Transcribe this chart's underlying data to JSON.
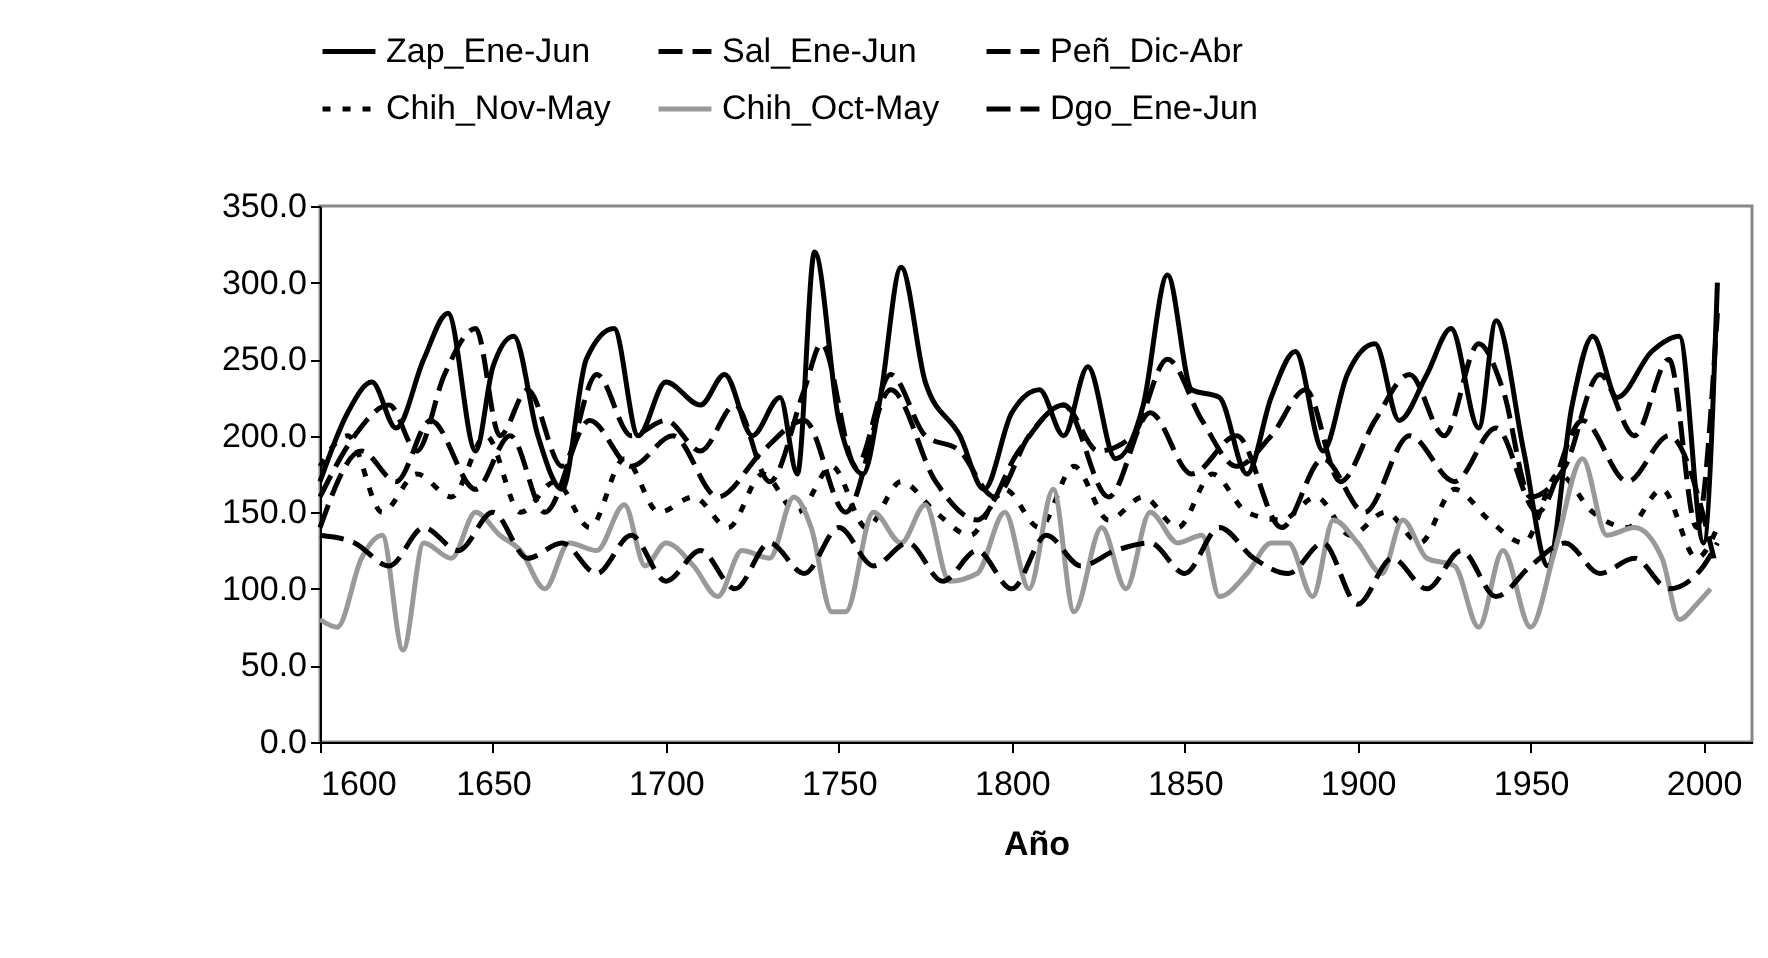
{
  "chart_data": {
    "type": "line",
    "xlabel": "Año",
    "legend": "top",
    "grid": false,
    "xlim": [
      1600,
      2014
    ],
    "xticks": [
      1600,
      1650,
      1700,
      1750,
      1800,
      1850,
      1900,
      1950,
      2000
    ],
    "ylim": [
      0,
      350
    ],
    "yticks": [
      {
        "value": 0,
        "label": "0.0"
      },
      {
        "value": 50,
        "label": "50.0"
      },
      {
        "value": 100,
        "label": "100.0"
      },
      {
        "value": 150,
        "label": "150.0"
      },
      {
        "value": 200,
        "label": "200.0"
      },
      {
        "value": 250,
        "label": "250.0"
      },
      {
        "value": 300,
        "label": "300.0"
      },
      {
        "value": 350,
        "label": "350.0"
      }
    ],
    "series": [
      {
        "name": "Zap_Ene-Jun",
        "color": "#000000",
        "line_style": "solid",
        "x": [
          1600,
          1608,
          1615,
          1622,
          1630,
          1637,
          1645,
          1650,
          1656,
          1663,
          1670,
          1677,
          1685,
          1692,
          1700,
          1710,
          1717,
          1725,
          1733,
          1738,
          1743,
          1750,
          1757,
          1762,
          1768,
          1775,
          1785,
          1792,
          1800,
          1808,
          1815,
          1822,
          1830,
          1838,
          1845,
          1852,
          1860,
          1868,
          1875,
          1882,
          1890,
          1897,
          1905,
          1912,
          1920,
          1927,
          1935,
          1940,
          1948,
          1955,
          1962,
          1968,
          1975,
          1985,
          1993,
          2000,
          2004
        ],
        "values": [
          170,
          215,
          235,
          205,
          250,
          280,
          190,
          245,
          265,
          200,
          165,
          250,
          270,
          200,
          235,
          220,
          240,
          200,
          225,
          175,
          320,
          210,
          175,
          225,
          310,
          235,
          200,
          165,
          215,
          230,
          200,
          245,
          185,
          220,
          305,
          230,
          225,
          175,
          225,
          255,
          190,
          240,
          260,
          210,
          240,
          270,
          205,
          275,
          190,
          115,
          220,
          265,
          225,
          255,
          265,
          130,
          300
        ]
      },
      {
        "name": "Sal_Ene-Jun",
        "color": "#000000",
        "line_style": "dashed",
        "x": [
          1600,
          1610,
          1620,
          1628,
          1636,
          1645,
          1652,
          1660,
          1670,
          1680,
          1690,
          1700,
          1710,
          1720,
          1730,
          1740,
          1745,
          1755,
          1765,
          1775,
          1785,
          1795,
          1805,
          1815,
          1825,
          1835,
          1845,
          1855,
          1865,
          1875,
          1885,
          1895,
          1905,
          1915,
          1925,
          1935,
          1942,
          1950,
          1960,
          1970,
          1980,
          1990,
          1998,
          2004
        ],
        "values": [
          160,
          200,
          220,
          190,
          240,
          270,
          200,
          230,
          180,
          240,
          200,
          210,
          190,
          220,
          170,
          230,
          260,
          180,
          240,
          200,
          190,
          160,
          200,
          220,
          190,
          200,
          250,
          210,
          180,
          200,
          230,
          170,
          210,
          240,
          200,
          260,
          230,
          160,
          180,
          240,
          200,
          250,
          140,
          280
        ]
      },
      {
        "name": "Peñ_Dic-Abr",
        "color": "#000000",
        "line_style": "dashed",
        "x": [
          1600,
          1612,
          1622,
          1632,
          1645,
          1655,
          1665,
          1678,
          1690,
          1702,
          1715,
          1728,
          1740,
          1752,
          1765,
          1778,
          1790,
          1802,
          1815,
          1828,
          1840,
          1852,
          1865,
          1878,
          1890,
          1902,
          1915,
          1928,
          1940,
          1952,
          1965,
          1978,
          1990,
          2003
        ],
        "values": [
          140,
          190,
          170,
          210,
          165,
          200,
          150,
          210,
          180,
          200,
          160,
          190,
          210,
          150,
          230,
          170,
          145,
          190,
          220,
          160,
          215,
          175,
          200,
          140,
          185,
          150,
          200,
          170,
          205,
          150,
          210,
          170,
          200,
          120
        ]
      },
      {
        "name": "Chih_Nov-May",
        "color": "#000000",
        "line_style": "dotted",
        "x": [
          1600,
          1608,
          1618,
          1628,
          1638,
          1648,
          1658,
          1668,
          1678,
          1688,
          1698,
          1708,
          1718,
          1728,
          1738,
          1748,
          1758,
          1768,
          1778,
          1788,
          1798,
          1808,
          1818,
          1828,
          1838,
          1848,
          1858,
          1868,
          1878,
          1888,
          1898,
          1908,
          1918,
          1928,
          1938,
          1948,
          1958,
          1968,
          1978,
          1988,
          1998,
          2004
        ],
        "values": [
          180,
          200,
          150,
          175,
          160,
          200,
          150,
          170,
          140,
          185,
          150,
          160,
          140,
          175,
          150,
          180,
          140,
          170,
          150,
          135,
          165,
          140,
          180,
          145,
          160,
          140,
          175,
          150,
          145,
          160,
          135,
          150,
          130,
          165,
          145,
          130,
          175,
          150,
          140,
          165,
          120,
          140
        ]
      },
      {
        "name": "Chih_Oct-May",
        "color": "#999999",
        "line_style": "solid",
        "x": [
          1600,
          1605,
          1612,
          1618,
          1624,
          1630,
          1638,
          1645,
          1652,
          1658,
          1665,
          1672,
          1680,
          1688,
          1694,
          1700,
          1708,
          1715,
          1722,
          1730,
          1737,
          1742,
          1748,
          1752,
          1760,
          1768,
          1775,
          1782,
          1790,
          1798,
          1805,
          1812,
          1818,
          1826,
          1833,
          1840,
          1848,
          1855,
          1860,
          1868,
          1875,
          1880,
          1887,
          1893,
          1900,
          1907,
          1913,
          1920,
          1928,
          1935,
          1942,
          1950,
          1957,
          1965,
          1972,
          1980,
          1988,
          1993,
          1998,
          2002
        ],
        "values": [
          80,
          75,
          120,
          135,
          60,
          130,
          120,
          150,
          135,
          125,
          100,
          130,
          125,
          155,
          115,
          130,
          115,
          95,
          125,
          120,
          160,
          140,
          85,
          85,
          150,
          130,
          155,
          105,
          110,
          150,
          100,
          165,
          85,
          140,
          100,
          150,
          130,
          135,
          95,
          110,
          130,
          130,
          95,
          145,
          130,
          110,
          145,
          120,
          115,
          75,
          125,
          75,
          125,
          185,
          135,
          140,
          120,
          80,
          90,
          100
        ]
      },
      {
        "name": "Dgo_Ene-Jun",
        "color": "#000000",
        "line_style": "dashed",
        "x": [
          1600,
          1610,
          1620,
          1630,
          1640,
          1650,
          1660,
          1670,
          1680,
          1690,
          1700,
          1710,
          1720,
          1730,
          1740,
          1750,
          1760,
          1770,
          1780,
          1790,
          1800,
          1810,
          1820,
          1830,
          1840,
          1850,
          1860,
          1870,
          1880,
          1890,
          1900,
          1910,
          1920,
          1930,
          1940,
          1950,
          1960,
          1970,
          1980,
          1990,
          2000,
          2004
        ],
        "values": [
          135,
          130,
          115,
          140,
          125,
          150,
          120,
          130,
          110,
          135,
          105,
          125,
          100,
          130,
          110,
          140,
          115,
          130,
          105,
          125,
          100,
          135,
          115,
          125,
          130,
          110,
          140,
          120,
          110,
          130,
          90,
          120,
          100,
          125,
          95,
          115,
          130,
          110,
          120,
          100,
          115,
          130
        ]
      }
    ]
  }
}
